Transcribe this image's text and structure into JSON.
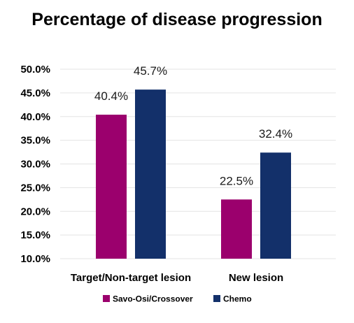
{
  "chart_data": {
    "type": "bar",
    "title": "Percentage of disease progression",
    "xlabel": "",
    "ylabel": "",
    "categories": [
      "Target/Non-target lesion",
      "New lesion"
    ],
    "series": [
      {
        "name": "Savo-Osi/Crossover",
        "color": "#9b006d",
        "values": [
          40.4,
          22.5
        ],
        "labels": [
          "40.4%",
          "22.5%"
        ]
      },
      {
        "name": "Chemo",
        "color": "#13306a",
        "values": [
          45.7,
          32.4
        ],
        "labels": [
          "45.7%",
          "32.4%"
        ]
      }
    ],
    "ylim": [
      10,
      50
    ],
    "yticks": [
      10,
      15,
      20,
      25,
      30,
      35,
      40,
      45,
      50
    ],
    "ytick_labels": [
      "10.0%",
      "15.0%",
      "20.0%",
      "25.0%",
      "30.0%",
      "35.0%",
      "40.0%",
      "45.0%",
      "50.0%"
    ],
    "grid": true,
    "legend_position": "bottom"
  }
}
